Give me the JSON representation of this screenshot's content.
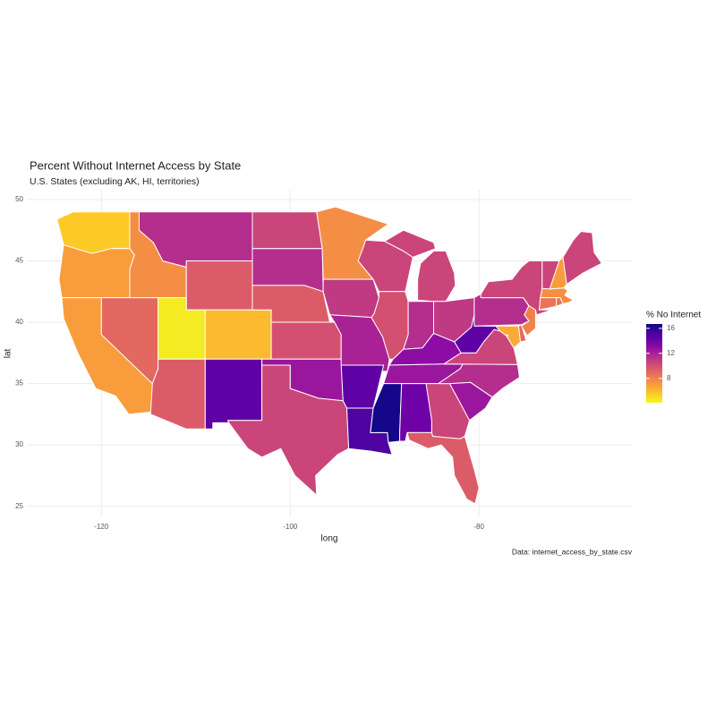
{
  "chart_data": {
    "type": "choropleth",
    "title": "Percent Without Internet Access by State",
    "subtitle": "U.S. States (excluding AK, HI, territories)",
    "x_label": "long",
    "y_label": "lat",
    "caption": "Data: internet_access_by_state.csv",
    "xlim": [
      -127.9,
      -63.8
    ],
    "ylim": [
      24.1,
      50.8
    ],
    "xticks": [
      -120,
      -100,
      -80
    ],
    "yticks": [
      25,
      30,
      35,
      40,
      45,
      50
    ],
    "grid": true,
    "colormap": "plasma",
    "reverse_colormap": true,
    "colorbar": {
      "title": "% No Internet",
      "lim": [
        4.1,
        16.7
      ],
      "ticks": [
        8,
        12,
        16
      ]
    },
    "values": [
      5.5,
      7,
      7,
      9,
      7.5,
      11.5,
      9.5,
      4.5,
      6,
      9.5,
      14.5,
      10.5,
      11.5,
      9.5,
      10,
      12.5,
      10.5,
      7.5,
      11,
      12,
      14.5,
      15,
      10.5,
      10,
      10.5,
      11.5,
      11,
      13,
      12.5,
      16.5,
      14,
      10.5,
      9.5,
      12.5,
      11.5,
      10.5,
      14.5,
      6.5,
      9,
      9,
      11.5,
      8,
      10.5,
      10.5,
      7,
      10.5,
      7.5,
      8.5,
      8.5
    ]
  }
}
